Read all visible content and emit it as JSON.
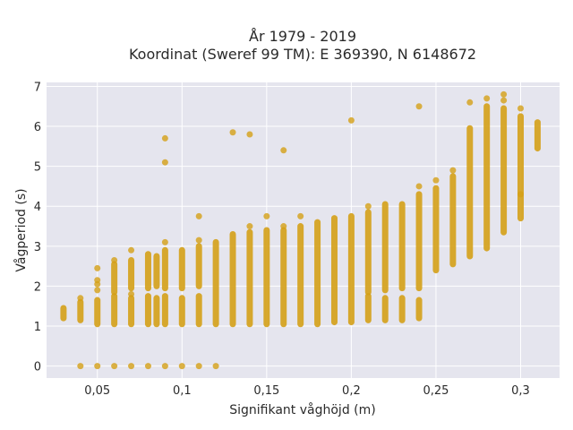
{
  "chart_data": {
    "type": "scatter",
    "title_line1": "År 1979 - 2019",
    "title_line2": "Koordinat (Sweref 99 TM): E 369390, N 6148672",
    "xlabel": "Signifikant våghöjd (m)",
    "ylabel": "Vågperiod (s)",
    "xlim": [
      0.02,
      0.323
    ],
    "ylim": [
      -0.3,
      7.1
    ],
    "xticks": [
      0.05,
      0.1,
      0.15,
      0.2,
      0.25,
      0.3
    ],
    "xtick_labels": [
      "0,05",
      "0,1",
      "0,15",
      "0,2",
      "0,25",
      "0,3"
    ],
    "yticks": [
      0,
      1,
      2,
      3,
      4,
      5,
      6,
      7
    ],
    "ytick_labels": [
      "0",
      "1",
      "2",
      "3",
      "4",
      "5",
      "6",
      "7"
    ],
    "grid": true,
    "marker_color": "#D4A017",
    "plot_bg": "#E5E5EE",
    "columns": [
      {
        "x": 0.03,
        "ranges": [
          [
            1.2,
            1.45
          ]
        ]
      },
      {
        "x": 0.04,
        "ranges": [
          [
            1.15,
            1.6
          ]
        ],
        "points": [
          0,
          1.7
        ]
      },
      {
        "x": 0.05,
        "ranges": [
          [
            1.05,
            1.65
          ]
        ],
        "points": [
          0,
          1.9,
          2.05,
          2.15,
          2.45
        ]
      },
      {
        "x": 0.06,
        "ranges": [
          [
            1.05,
            1.75
          ],
          [
            1.85,
            2.55
          ]
        ],
        "points": [
          0,
          2.65
        ]
      },
      {
        "x": 0.07,
        "ranges": [
          [
            1.05,
            1.7
          ],
          [
            1.95,
            2.65
          ]
        ],
        "points": [
          0,
          1.8,
          2.9
        ]
      },
      {
        "x": 0.08,
        "ranges": [
          [
            1.05,
            1.75
          ],
          [
            1.95,
            2.8
          ]
        ],
        "points": [
          0
        ]
      },
      {
        "x": 0.085,
        "ranges": [
          [
            1.05,
            1.7
          ],
          [
            2.0,
            2.75
          ]
        ]
      },
      {
        "x": 0.09,
        "ranges": [
          [
            1.05,
            1.75
          ],
          [
            1.95,
            2.9
          ]
        ],
        "points": [
          0,
          3.1,
          5.1,
          5.7
        ]
      },
      {
        "x": 0.1,
        "ranges": [
          [
            1.05,
            1.7
          ],
          [
            1.95,
            2.9
          ]
        ],
        "points": [
          0
        ]
      },
      {
        "x": 0.11,
        "ranges": [
          [
            1.05,
            1.75
          ],
          [
            2.0,
            3.0
          ]
        ],
        "points": [
          0,
          3.15,
          3.75
        ]
      },
      {
        "x": 0.12,
        "ranges": [
          [
            1.05,
            3.1
          ]
        ],
        "points": [
          0
        ]
      },
      {
        "x": 0.13,
        "ranges": [
          [
            1.05,
            3.3
          ]
        ],
        "points": [
          5.85
        ]
      },
      {
        "x": 0.14,
        "ranges": [
          [
            1.05,
            3.35
          ]
        ],
        "points": [
          3.5,
          5.8
        ]
      },
      {
        "x": 0.15,
        "ranges": [
          [
            1.05,
            3.4
          ]
        ],
        "points": [
          3.75
        ]
      },
      {
        "x": 0.16,
        "ranges": [
          [
            1.05,
            3.4
          ]
        ],
        "points": [
          3.5,
          5.4
        ]
      },
      {
        "x": 0.17,
        "ranges": [
          [
            1.05,
            3.5
          ]
        ],
        "points": [
          3.75
        ]
      },
      {
        "x": 0.18,
        "ranges": [
          [
            1.05,
            3.6
          ]
        ]
      },
      {
        "x": 0.19,
        "ranges": [
          [
            1.1,
            3.7
          ]
        ]
      },
      {
        "x": 0.2,
        "ranges": [
          [
            1.1,
            3.75
          ]
        ],
        "points": [
          6.15
        ]
      },
      {
        "x": 0.21,
        "ranges": [
          [
            1.15,
            1.75
          ],
          [
            1.85,
            3.85
          ]
        ],
        "points": [
          4.0
        ]
      },
      {
        "x": 0.22,
        "ranges": [
          [
            1.15,
            1.7
          ],
          [
            1.9,
            4.05
          ]
        ]
      },
      {
        "x": 0.23,
        "ranges": [
          [
            1.15,
            1.7
          ],
          [
            1.95,
            4.05
          ]
        ]
      },
      {
        "x": 0.24,
        "ranges": [
          [
            1.2,
            1.65
          ],
          [
            1.95,
            4.3
          ]
        ],
        "points": [
          4.5,
          6.5
        ]
      },
      {
        "x": 0.25,
        "ranges": [
          [
            2.4,
            4.45
          ]
        ],
        "points": [
          4.65
        ]
      },
      {
        "x": 0.26,
        "ranges": [
          [
            2.55,
            4.75
          ]
        ],
        "points": [
          4.9
        ]
      },
      {
        "x": 0.27,
        "ranges": [
          [
            2.75,
            5.95
          ]
        ],
        "points": [
          6.6
        ]
      },
      {
        "x": 0.28,
        "ranges": [
          [
            2.95,
            6.5
          ]
        ],
        "points": [
          6.7
        ]
      },
      {
        "x": 0.29,
        "ranges": [
          [
            3.35,
            6.45
          ]
        ],
        "points": [
          6.65,
          6.8
        ]
      },
      {
        "x": 0.3,
        "ranges": [
          [
            3.7,
            6.25
          ]
        ],
        "points": [
          4.3,
          6.45
        ]
      },
      {
        "x": 0.31,
        "ranges": [
          [
            5.45,
            6.1
          ]
        ]
      }
    ]
  }
}
